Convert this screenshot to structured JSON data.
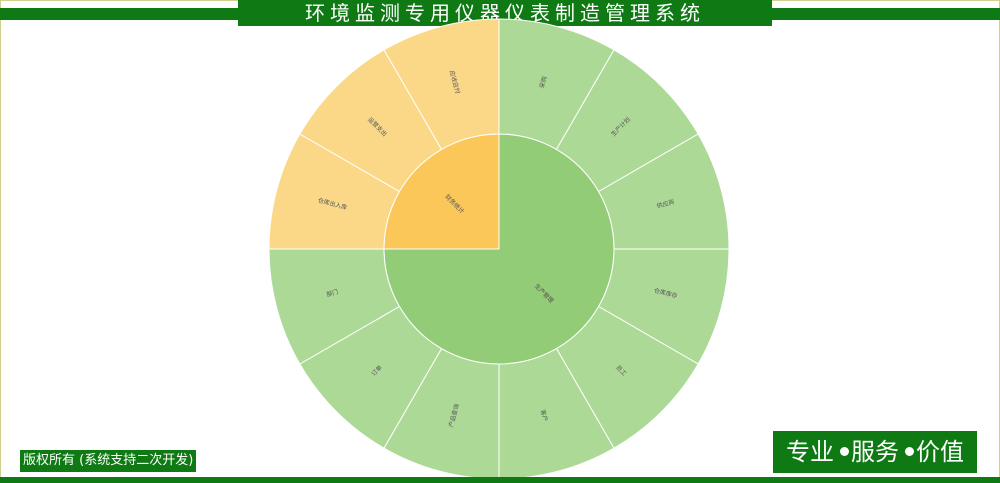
{
  "header": {
    "title": "环境监测专用仪器仪表制造管理系统"
  },
  "footer": {
    "copyright": "版权所有 (系统支持二次开发)",
    "slogan": [
      "专业",
      "服务",
      "价值"
    ]
  },
  "colors": {
    "brand_green": "#0f7a14",
    "center_green": "#92cc76",
    "outer_green": "#add997",
    "center_orange": "#fac758",
    "outer_orange": "#fbd888"
  },
  "chart_data": {
    "type": "sunburst",
    "groups": [
      {
        "name": "生产管理",
        "color": "#92cc76",
        "outer_color": "#add997",
        "children": [
          "采购",
          "生产计划",
          "供应商",
          "仓库库存",
          "员工",
          "客户",
          "产品查询",
          "订单",
          "部门"
        ]
      },
      {
        "name": "财务统计",
        "color": "#fac758",
        "outer_color": "#fbd888",
        "children": [
          "仓库出入库",
          "运营支出",
          "应收应付"
        ]
      }
    ]
  }
}
